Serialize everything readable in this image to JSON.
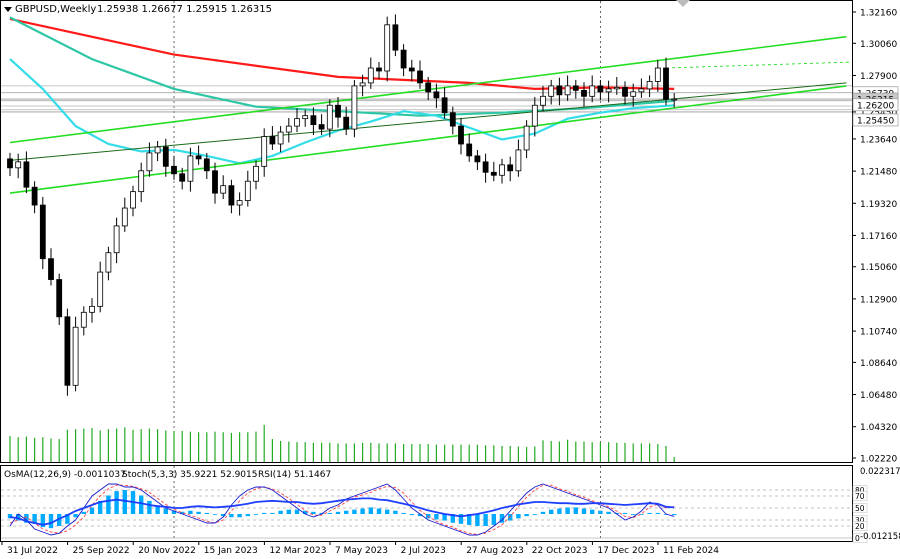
{
  "header": {
    "symbol_label": "GBPUSD,Weekly",
    "ohlc_text": "1.25938 1.26677 1.25915 1.26315"
  },
  "indicator_header": {
    "osma_text": "OsMA(12,26,9) -0.0011037",
    "stoch_text": "Stoch(5,3,3) 35.9221 52.9015",
    "rsi_text": "RSI(14) 51.1467"
  },
  "colors": {
    "background": "#ffffff",
    "bull_candle": "#ffffff",
    "bear_candle": "#000000",
    "ma_red": "#ff1a1a",
    "ma_teal": "#2ec7a6",
    "ma_cyan": "#33dde8",
    "channel_green": "#22dd22",
    "trend_dark": "#1a6a1a",
    "volume": "#22aa22",
    "osma_hist": "#00aaff",
    "stoch_main": "#1a1acc",
    "stoch_signal": "#ff4444",
    "rsi_line": "#1f3fff",
    "price_current_tag": "#c8c8c8"
  },
  "chart_data": [
    {
      "type": "candlestick",
      "title": "GBPUSD,Weekly",
      "y_axis_ticks": [
        "1.32160",
        "1.30060",
        "1.27900",
        "1.25450",
        "1.23640",
        "1.21480",
        "1.19320",
        "1.17160",
        "1.15060",
        "1.12900",
        "1.10740",
        "1.08640",
        "1.06480",
        "1.04320",
        "1.02220"
      ],
      "price_tags": [
        "1.26739",
        "1.26315",
        "1.26200",
        "1.25450"
      ],
      "current_price": 1.26315,
      "x_tick_labels": [
        "31 Jul 2022",
        "25 Sep 2022",
        "20 Nov 2022",
        "15 Jan 2023",
        "12 Mar 2023",
        "7 May 2023",
        "2 Jul 2023",
        "27 Aug 2023",
        "22 Oct 2023",
        "17 Dec 2023",
        "11 Feb 2024"
      ],
      "x_tick_positions": [
        0,
        8,
        16,
        24,
        32,
        40,
        48,
        56,
        64,
        72,
        80
      ],
      "ylim": [
        1.0222,
        1.3216
      ],
      "closes": [
        1.217,
        1.221,
        1.204,
        1.192,
        1.156,
        1.142,
        1.117,
        1.071,
        1.11,
        1.12,
        1.124,
        1.147,
        1.16,
        1.178,
        1.19,
        1.201,
        1.215,
        1.227,
        1.231,
        1.218,
        1.213,
        1.208,
        1.225,
        1.223,
        1.215,
        1.2,
        1.205,
        1.192,
        1.195,
        1.208,
        1.218,
        1.238,
        1.233,
        1.241,
        1.245,
        1.25,
        1.252,
        1.246,
        1.243,
        1.259,
        1.251,
        1.243,
        1.272,
        1.274,
        1.284,
        1.282,
        1.313,
        1.296,
        1.284,
        1.282,
        1.274,
        1.268,
        1.264,
        1.254,
        1.245,
        1.233,
        1.225,
        1.221,
        1.214,
        1.212,
        1.219,
        1.215,
        1.229,
        1.245,
        1.259,
        1.265,
        1.272,
        1.266,
        1.272,
        1.269,
        1.265,
        1.272,
        1.268,
        1.27,
        1.271,
        1.265,
        1.268,
        1.27,
        1.275,
        1.284,
        1.263,
        1.2632
      ],
      "series": [
        {
          "name": "",
          "color_key": "ma_red",
          "x": [
            0,
            20,
            40,
            56,
            64,
            72,
            81
          ],
          "y": [
            1.317,
            1.293,
            1.278,
            1.274,
            1.27,
            1.271,
            1.27
          ]
        },
        {
          "name": "",
          "color_key": "ma_teal",
          "x": [
            0,
            10,
            20,
            30,
            40,
            50,
            60,
            70,
            81
          ],
          "y": [
            1.318,
            1.29,
            1.27,
            1.258,
            1.255,
            1.252,
            1.254,
            1.257,
            1.262
          ]
        },
        {
          "name": "",
          "color_key": "ma_cyan",
          "x": [
            0,
            4,
            8,
            12,
            16,
            20,
            24,
            28,
            32,
            36,
            40,
            44,
            48,
            52,
            56,
            60,
            64,
            68,
            72,
            76,
            81
          ],
          "y": [
            1.29,
            1.27,
            1.245,
            1.233,
            1.228,
            1.229,
            1.225,
            1.22,
            1.225,
            1.234,
            1.242,
            1.248,
            1.255,
            1.252,
            1.244,
            1.236,
            1.24,
            1.25,
            1.254,
            1.257,
            1.259
          ]
        },
        {
          "name": "",
          "color_key": "channel_green",
          "x": [
            0,
            102
          ],
          "y": [
            1.2,
            1.272
          ]
        },
        {
          "name": "",
          "color_key": "channel_green",
          "x": [
            0,
            102
          ],
          "y": [
            1.234,
            1.305
          ]
        },
        {
          "name": "",
          "color_key": "trend_dark",
          "x": [
            0,
            102
          ],
          "y": [
            1.222,
            1.274
          ]
        }
      ],
      "volume": [
        42,
        40,
        41,
        39,
        40,
        38,
        37,
        52,
        53,
        54,
        55,
        51,
        53,
        54,
        56,
        52,
        53,
        54,
        53,
        51,
        50,
        50,
        49,
        48,
        48,
        49,
        48,
        47,
        48,
        48,
        49,
        60,
        37,
        34,
        33,
        32,
        32,
        31,
        31,
        31,
        30,
        30,
        30,
        31,
        31,
        30,
        30,
        30,
        29,
        29,
        29,
        29,
        28,
        28,
        28,
        28,
        28,
        28,
        27,
        27,
        26,
        26,
        25,
        24,
        25,
        35,
        34,
        33,
        36,
        33,
        33,
        32,
        32,
        32,
        31,
        31,
        30,
        30,
        30,
        29,
        26,
        8
      ]
    },
    {
      "type": "line",
      "title": "OsMA(12,26,9) -0.0011037 Stoch(5,3,3) 35.9221 52.9015 RSI(14) 51.1467",
      "right_tick_labels": [
        "0.0223175",
        "-0.012158"
      ],
      "level_labels": [
        "80",
        "70",
        "50",
        "30",
        "20",
        "0"
      ],
      "levels": [
        80,
        70,
        50,
        30,
        20,
        0
      ],
      "osma": [
        -0.004,
        -0.006,
        -0.008,
        -0.009,
        -0.012,
        -0.013,
        -0.011,
        -0.009,
        -0.003,
        0.002,
        0.006,
        0.012,
        0.017,
        0.021,
        0.022,
        0.021,
        0.017,
        0.012,
        0.008,
        0.005,
        0.003,
        0.002,
        0.003,
        0.002,
        0.001,
        0.0,
        -0.002,
        -0.003,
        -0.003,
        -0.002,
        0.0,
        0.001,
        0.001,
        0.003,
        0.004,
        0.004,
        0.003,
        0.002,
        0.001,
        0.001,
        0.002,
        0.003,
        0.004,
        0.005,
        0.006,
        0.005,
        0.004,
        0.003,
        0.001,
        -0.001,
        -0.002,
        -0.004,
        -0.005,
        -0.006,
        -0.008,
        -0.009,
        -0.01,
        -0.011,
        -0.011,
        -0.01,
        -0.008,
        -0.006,
        -0.004,
        -0.002,
        0.0,
        0.002,
        0.004,
        0.005,
        0.006,
        0.006,
        0.005,
        0.004,
        0.003,
        0.002,
        0.001,
        0.001,
        0.0,
        0.0,
        0.001,
        0.001,
        0.0,
        -0.001
      ],
      "stoch_main": [
        20,
        40,
        30,
        15,
        10,
        5,
        8,
        20,
        30,
        50,
        70,
        80,
        90,
        90,
        85,
        85,
        80,
        70,
        60,
        50,
        45,
        40,
        35,
        30,
        25,
        25,
        35,
        55,
        70,
        80,
        85,
        85,
        80,
        70,
        60,
        50,
        40,
        35,
        40,
        50,
        55,
        65,
        70,
        75,
        80,
        85,
        90,
        80,
        65,
        50,
        40,
        30,
        25,
        20,
        15,
        10,
        5,
        5,
        10,
        20,
        30,
        45,
        60,
        75,
        85,
        90,
        85,
        80,
        75,
        70,
        65,
        60,
        55,
        50,
        40,
        30,
        35,
        45,
        60,
        55,
        40,
        36
      ],
      "stoch_signal": [
        25,
        30,
        35,
        25,
        15,
        10,
        8,
        12,
        22,
        35,
        55,
        70,
        82,
        88,
        88,
        86,
        82,
        76,
        66,
        56,
        48,
        42,
        38,
        33,
        28,
        25,
        30,
        45,
        62,
        75,
        82,
        85,
        82,
        75,
        66,
        56,
        46,
        38,
        38,
        45,
        52,
        60,
        68,
        72,
        76,
        82,
        86,
        84,
        75,
        60,
        46,
        36,
        28,
        22,
        18,
        12,
        8,
        6,
        8,
        14,
        22,
        36,
        52,
        68,
        80,
        88,
        88,
        82,
        78,
        72,
        68,
        62,
        58,
        52,
        45,
        36,
        34,
        40,
        52,
        56,
        50,
        53
      ],
      "rsi": [
        35,
        33,
        28,
        25,
        22,
        25,
        32,
        38,
        45,
        50,
        55,
        60,
        62,
        64,
        62,
        60,
        58,
        55,
        53,
        52,
        50,
        50,
        52,
        53,
        52,
        51,
        52,
        53,
        55,
        57,
        60,
        61,
        62,
        61,
        60,
        60,
        58,
        57,
        58,
        60,
        62,
        64,
        65,
        66,
        66,
        64,
        63,
        60,
        57,
        54,
        50,
        46,
        43,
        40,
        38,
        36,
        38,
        40,
        43,
        46,
        50,
        53,
        56,
        58,
        60,
        60,
        59,
        58,
        58,
        57,
        57,
        58,
        58,
        57,
        56,
        55,
        56,
        57,
        58,
        57,
        52,
        51
      ]
    }
  ]
}
